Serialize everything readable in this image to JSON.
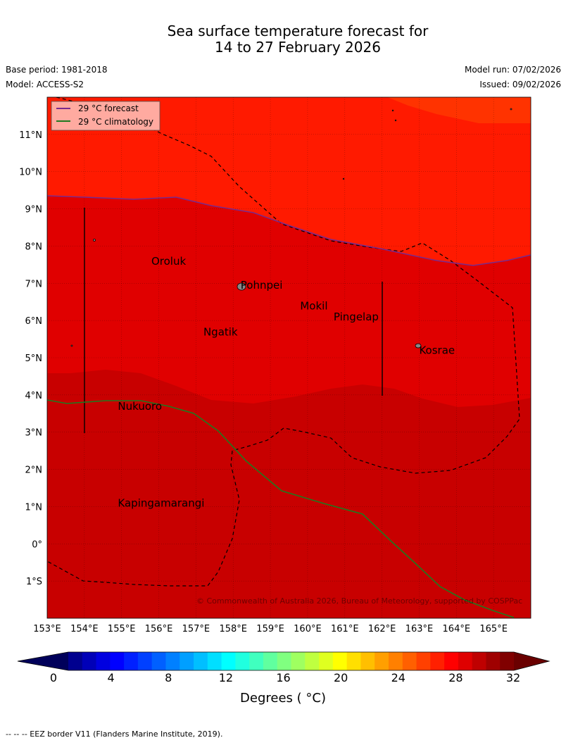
{
  "header": {
    "title_line1": "Sea surface temperature forecast for",
    "title_line2": "14 to 27 February 2026",
    "base_period": "Base period: 1981-2018",
    "model": "Model: ACCESS-S2",
    "model_run": "Model run: 07/02/2026",
    "issued": "Issued: 09/02/2026"
  },
  "legend": {
    "forecast_label": "29 °C  forecast",
    "climatology_label": "29 °C  climatology",
    "forecast_color": "#7a2a8c",
    "climatology_color": "#1f7a1f"
  },
  "map": {
    "lon_labels": [
      "153°E",
      "154°E",
      "155°E",
      "156°E",
      "157°E",
      "158°E",
      "159°E",
      "160°E",
      "161°E",
      "162°E",
      "163°E",
      "164°E",
      "165°E"
    ],
    "lat_labels": [
      "11°N",
      "10°N",
      "9°N",
      "8°N",
      "7°N",
      "6°N",
      "5°N",
      "4°N",
      "3°N",
      "2°N",
      "1°N",
      "0°",
      "1°S"
    ],
    "lon_range": [
      153,
      166
    ],
    "lat_range": [
      -2,
      12
    ],
    "places": [
      {
        "name": "Oroluk",
        "lon": 155.8,
        "lat": 7.5
      },
      {
        "name": "Pohnpei",
        "lon": 158.2,
        "lat": 6.85
      },
      {
        "name": "Mokil",
        "lon": 159.8,
        "lat": 6.3
      },
      {
        "name": "Pingelap",
        "lon": 160.7,
        "lat": 6.0
      },
      {
        "name": "Ngatik",
        "lon": 157.2,
        "lat": 5.6
      },
      {
        "name": "Kosrae",
        "lon": 163.0,
        "lat": 5.1
      },
      {
        "name": "Nukuoro",
        "lon": 154.9,
        "lat": 3.6
      },
      {
        "name": "Kapingamarangi",
        "lon": 154.9,
        "lat": 1.0
      }
    ],
    "copyright": "© Commonwealth of Australia 2026, Bureau of Meteorology, supported by COSPPac",
    "colors": {
      "warm_top": "#ff1a00",
      "mid": "#e00000",
      "low": "#c80000"
    }
  },
  "colorbar": {
    "ticks": [
      "0",
      "4",
      "8",
      "12",
      "16",
      "20",
      "24",
      "28",
      "32"
    ],
    "label": "Degrees ( °C)",
    "colors": [
      "#00008f",
      "#0000b8",
      "#0000e0",
      "#0000ff",
      "#0020ff",
      "#0040ff",
      "#0060ff",
      "#0080ff",
      "#009fff",
      "#00bfff",
      "#00dfff",
      "#00ffff",
      "#20ffdf",
      "#40ffbf",
      "#60ff9f",
      "#80ff80",
      "#9fff60",
      "#bfff40",
      "#dfff20",
      "#ffff00",
      "#ffdf00",
      "#ffbf00",
      "#ff9f00",
      "#ff8000",
      "#ff6000",
      "#ff4000",
      "#ff2000",
      "#ff0000",
      "#df0000",
      "#bf0000",
      "#9f0000",
      "#800000"
    ]
  },
  "footnote": "--  --  -- EEZ border V11 (Flanders Marine Institute, 2019)."
}
